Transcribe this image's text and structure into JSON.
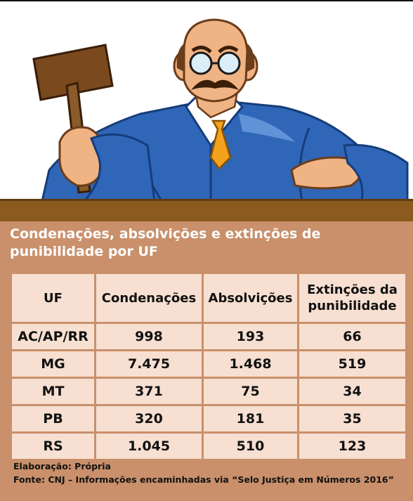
{
  "title": "Condenações, absolvições e extinções de punibilidade por UF",
  "table": {
    "headers": [
      "UF",
      "Condenações",
      "Absolvições",
      "Extinções da punibilidade"
    ],
    "rows": [
      [
        "AC/AP/RR",
        "998",
        "193",
        "66"
      ],
      [
        "MG",
        "7.475",
        "1.468",
        "519"
      ],
      [
        "MT",
        "371",
        "75",
        "34"
      ],
      [
        "PB",
        "320",
        "181",
        "35"
      ],
      [
        "RS",
        "1.045",
        "510",
        "123"
      ]
    ]
  },
  "footer": {
    "elaboration": "Elaboração: Própria",
    "source": "Fonte: CNJ – Informações encaminhadas via “Selo Justiça em Números 2016”"
  },
  "colors": {
    "panel": "#c9906b",
    "cell": "#f7dfd1",
    "desk": "#8a5a1e",
    "robe": "#2f66b8"
  },
  "icons": [
    "judge-illustration",
    "gavel-icon"
  ]
}
